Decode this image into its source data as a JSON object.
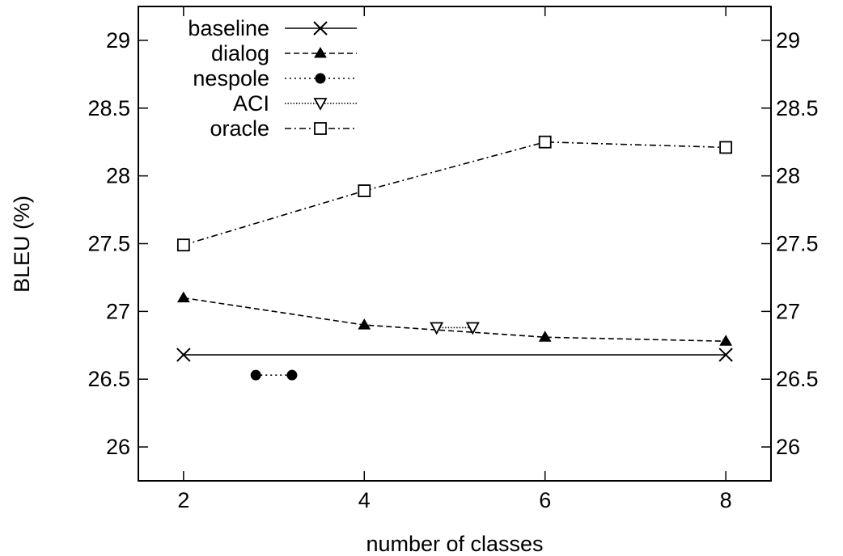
{
  "chart_data": {
    "type": "line",
    "title": "",
    "xlabel": "number of classes",
    "ylabel": "BLEU (%)",
    "xlim": [
      1.5,
      8.5
    ],
    "ylim": [
      25.75,
      29.25
    ],
    "x_ticks": [
      2,
      4,
      6,
      8
    ],
    "y_ticks": [
      26,
      26.5,
      27,
      27.5,
      28,
      28.5,
      29
    ],
    "y_tick_labels": [
      "26",
      "26.5",
      "27",
      "27.5",
      "28",
      "28.5",
      "29"
    ],
    "x_tick_labels": [
      "2",
      "4",
      "6",
      "8"
    ],
    "grid": false,
    "mirror_y_axis_right": true,
    "legend_position": "top-left",
    "series": [
      {
        "name": "baseline",
        "marker": "x",
        "dash": "solid",
        "x": [
          2,
          8
        ],
        "y": [
          26.68,
          26.68
        ]
      },
      {
        "name": "dialog",
        "marker": "filled-triangle",
        "dash": "dashed",
        "x": [
          2,
          4,
          6,
          8
        ],
        "y": [
          27.1,
          26.9,
          26.81,
          26.78
        ]
      },
      {
        "name": "nespole",
        "marker": "filled-circle",
        "dash": "dotted",
        "x": [
          2.8,
          3.2
        ],
        "y": [
          26.53,
          26.53
        ]
      },
      {
        "name": "ACI",
        "marker": "open-triangle-down",
        "dash": "fine-dotted",
        "x": [
          4.8,
          5.2
        ],
        "y": [
          26.88,
          26.88
        ]
      },
      {
        "name": "oracle",
        "marker": "open-square",
        "dash": "dash-dot",
        "x": [
          2,
          4,
          6,
          8
        ],
        "y": [
          27.49,
          27.89,
          28.25,
          28.21
        ]
      }
    ]
  }
}
